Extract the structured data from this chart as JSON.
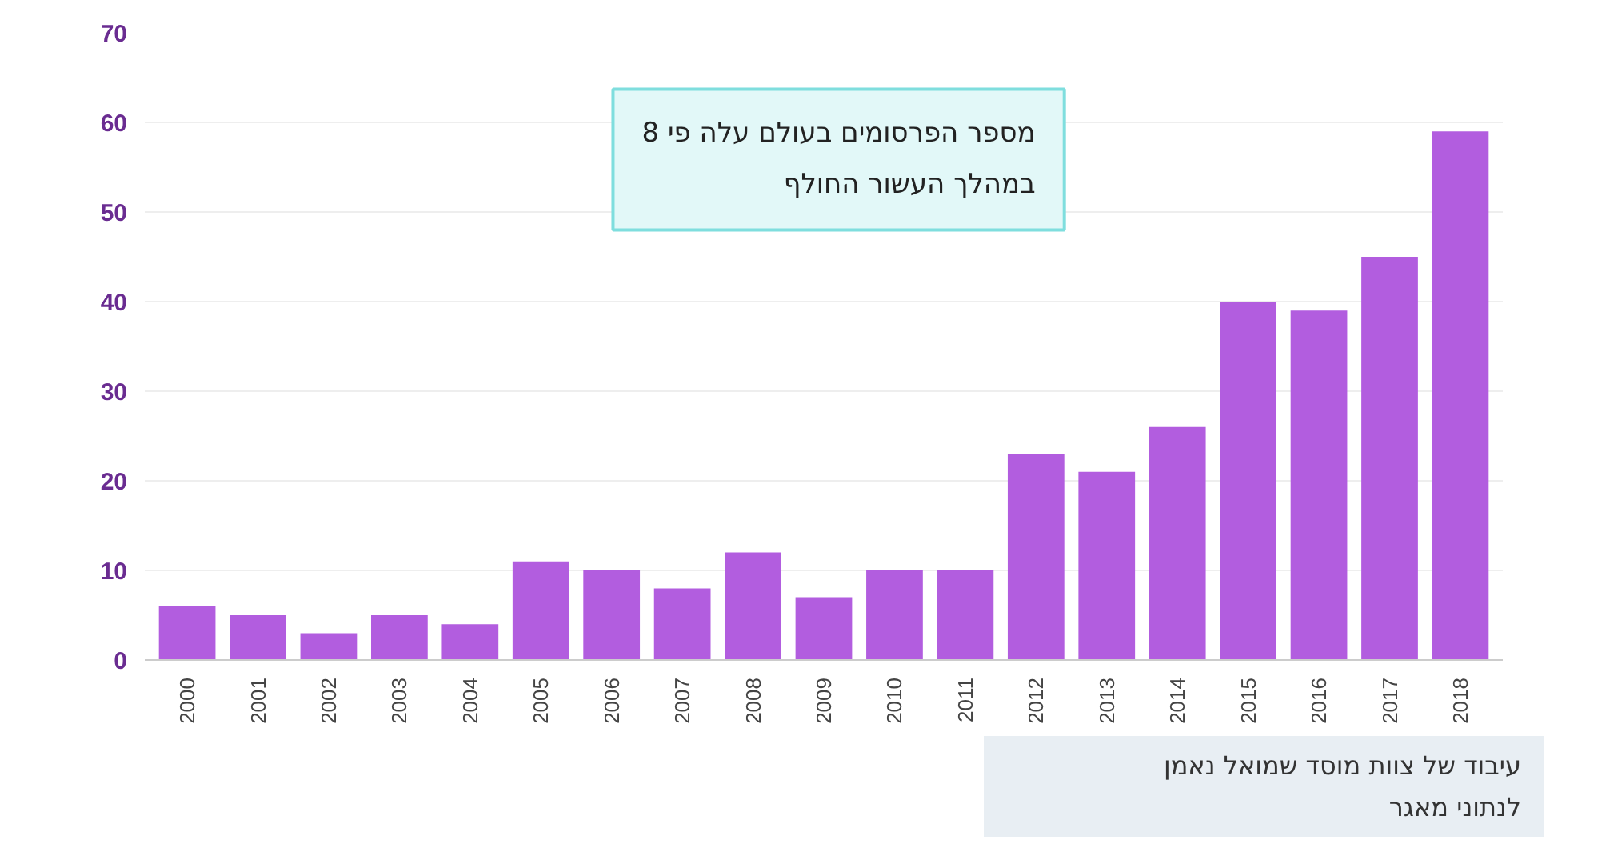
{
  "chart_data": {
    "type": "bar",
    "categories": [
      "2000",
      "2001",
      "2002",
      "2003",
      "2004",
      "2005",
      "2006",
      "2007",
      "2008",
      "2009",
      "2010",
      "2011",
      "2012",
      "2013",
      "2014",
      "2015",
      "2016",
      "2017",
      "2018"
    ],
    "values": [
      6,
      5,
      3,
      5,
      4,
      11,
      10,
      8,
      12,
      7,
      10,
      10,
      23,
      21,
      26,
      40,
      39,
      45,
      59
    ],
    "color": "#b25ddf",
    "ylim": [
      0,
      70
    ],
    "yticks": [
      0,
      10,
      20,
      30,
      40,
      50,
      60,
      70
    ],
    "grid": "y",
    "annotations": [
      "מספר הפרסומים בעולם עלה פי 8\nבמהלך העשור החולף",
      "עיבוד של צוות מוסד שמואל נאמן\nלנתוני מאגר"
    ]
  }
}
